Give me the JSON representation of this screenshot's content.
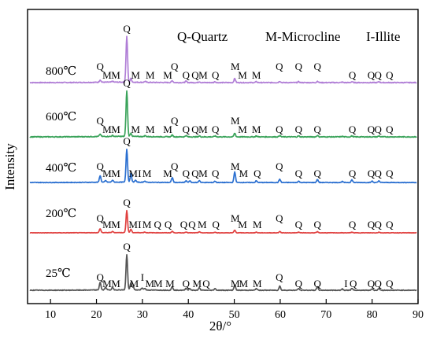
{
  "chart_data": {
    "type": "line",
    "xlabel": "2θ/°",
    "ylabel": "Intensity",
    "xlim": [
      5,
      90
    ],
    "x_ticks": [
      "10",
      "20",
      "30",
      "40",
      "50",
      "60",
      "70",
      "80",
      "90"
    ],
    "legend": [
      {
        "letter": "Q",
        "text": "Q-Quartz"
      },
      {
        "letter": "M",
        "text": "M-Microcline"
      },
      {
        "letter": "I",
        "text": "I-Illite"
      }
    ],
    "series": [
      {
        "name": "800℃",
        "color": "#b07ed6",
        "peaks": [
          [
            20.8,
            0.05
          ],
          [
            23.5,
            0.02
          ],
          [
            26.6,
            1.0
          ],
          [
            27.5,
            0.08
          ],
          [
            30.6,
            0.02
          ],
          [
            36.5,
            0.04
          ],
          [
            39.5,
            0.03
          ],
          [
            42.4,
            0.02
          ],
          [
            45.8,
            0.02
          ],
          [
            50.1,
            0.09
          ],
          [
            54.8,
            0.02
          ],
          [
            59.9,
            0.03
          ],
          [
            64.0,
            0.02
          ],
          [
            68.1,
            0.03
          ],
          [
            73.5,
            0.01
          ],
          [
            75.6,
            0.02
          ],
          [
            81.5,
            0.02
          ]
        ],
        "labels": [
          {
            "t": "Q",
            "x": 20.8,
            "row": 0
          },
          {
            "t": "M",
            "x": 22.3,
            "row": 1
          },
          {
            "t": "M",
            "x": 24.2,
            "row": 1
          },
          {
            "t": "M",
            "x": 28.5,
            "row": 1
          },
          {
            "t": "M",
            "x": 31.7,
            "row": 1
          },
          {
            "t": "M",
            "x": 35.5,
            "row": 1
          },
          {
            "t": "Q",
            "x": 37.0,
            "row": 0
          },
          {
            "t": "Q",
            "x": 39.5,
            "row": 1
          },
          {
            "t": "Q",
            "x": 41.5,
            "row": 1
          },
          {
            "t": "M",
            "x": 43.2,
            "row": 1
          },
          {
            "t": "Q",
            "x": 45.9,
            "row": 1
          },
          {
            "t": "M",
            "x": 50.2,
            "row": 0
          },
          {
            "t": "M",
            "x": 51.8,
            "row": 1
          },
          {
            "t": "M",
            "x": 54.8,
            "row": 1
          },
          {
            "t": "Q",
            "x": 59.8,
            "row": 0
          },
          {
            "t": "Q",
            "x": 64.0,
            "row": 0
          },
          {
            "t": "Q",
            "x": 68.1,
            "row": 0
          },
          {
            "t": "Q",
            "x": 75.7,
            "row": 1
          },
          {
            "t": "Q",
            "x": 79.8,
            "row": 1
          },
          {
            "t": "Q",
            "x": 81.3,
            "row": 1
          },
          {
            "t": "Q",
            "x": 83.8,
            "row": 1
          }
        ]
      },
      {
        "name": "600℃",
        "color": "#3aa35a",
        "peaks": [
          [
            20.8,
            0.05
          ],
          [
            23.5,
            0.02
          ],
          [
            26.6,
            1.0
          ],
          [
            27.5,
            0.07
          ],
          [
            30.6,
            0.02
          ],
          [
            36.5,
            0.04
          ],
          [
            39.5,
            0.03
          ],
          [
            42.4,
            0.02
          ],
          [
            45.8,
            0.02
          ],
          [
            50.1,
            0.08
          ],
          [
            54.8,
            0.02
          ],
          [
            59.9,
            0.03
          ],
          [
            64.0,
            0.02
          ],
          [
            68.1,
            0.03
          ],
          [
            73.5,
            0.01
          ],
          [
            75.6,
            0.02
          ],
          [
            81.5,
            0.02
          ]
        ],
        "labels": [
          {
            "t": "Q",
            "x": 20.8,
            "row": 0
          },
          {
            "t": "M",
            "x": 22.3,
            "row": 1
          },
          {
            "t": "M",
            "x": 24.2,
            "row": 1
          },
          {
            "t": "M",
            "x": 28.5,
            "row": 1
          },
          {
            "t": "M",
            "x": 31.7,
            "row": 1
          },
          {
            "t": "M",
            "x": 35.5,
            "row": 1
          },
          {
            "t": "Q",
            "x": 37.0,
            "row": 0
          },
          {
            "t": "Q",
            "x": 39.5,
            "row": 1
          },
          {
            "t": "Q",
            "x": 41.5,
            "row": 1
          },
          {
            "t": "M",
            "x": 43.2,
            "row": 1
          },
          {
            "t": "Q",
            "x": 45.9,
            "row": 1
          },
          {
            "t": "M",
            "x": 50.2,
            "row": 0
          },
          {
            "t": "M",
            "x": 51.8,
            "row": 1
          },
          {
            "t": "M",
            "x": 54.8,
            "row": 1
          },
          {
            "t": "Q",
            "x": 59.8,
            "row": 1
          },
          {
            "t": "Q",
            "x": 64.0,
            "row": 1
          },
          {
            "t": "Q",
            "x": 68.1,
            "row": 1
          },
          {
            "t": "Q",
            "x": 75.7,
            "row": 1
          },
          {
            "t": "Q",
            "x": 79.8,
            "row": 1
          },
          {
            "t": "Q",
            "x": 81.3,
            "row": 1
          },
          {
            "t": "Q",
            "x": 83.8,
            "row": 1
          }
        ]
      },
      {
        "name": "400℃",
        "color": "#2a6fd0",
        "peaks": [
          [
            20.8,
            0.2
          ],
          [
            22.0,
            0.05
          ],
          [
            23.5,
            0.06
          ],
          [
            26.6,
            1.0
          ],
          [
            27.5,
            0.25
          ],
          [
            28.5,
            0.06
          ],
          [
            30.5,
            0.04
          ],
          [
            36.5,
            0.15
          ],
          [
            39.5,
            0.05
          ],
          [
            40.3,
            0.05
          ],
          [
            42.4,
            0.06
          ],
          [
            45.8,
            0.04
          ],
          [
            50.1,
            0.32
          ],
          [
            54.8,
            0.05
          ],
          [
            59.9,
            0.1
          ],
          [
            64.0,
            0.04
          ],
          [
            68.1,
            0.09
          ],
          [
            73.5,
            0.03
          ],
          [
            75.6,
            0.08
          ],
          [
            80.0,
            0.04
          ],
          [
            81.5,
            0.05
          ]
        ],
        "labels": [
          {
            "t": "Q",
            "x": 20.8,
            "row": 0
          },
          {
            "t": "M",
            "x": 22.3,
            "row": 1
          },
          {
            "t": "M",
            "x": 24.2,
            "row": 1
          },
          {
            "t": "M",
            "x": 28.0,
            "row": 1
          },
          {
            "t": "I",
            "x": 29.4,
            "row": 1
          },
          {
            "t": "M",
            "x": 31.0,
            "row": 1
          },
          {
            "t": "M",
            "x": 35.5,
            "row": 1
          },
          {
            "t": "Q",
            "x": 37.0,
            "row": 0
          },
          {
            "t": "Q",
            "x": 39.5,
            "row": 1
          },
          {
            "t": "Q",
            "x": 41.5,
            "row": 1
          },
          {
            "t": "M",
            "x": 43.2,
            "row": 1
          },
          {
            "t": "Q",
            "x": 45.9,
            "row": 1
          },
          {
            "t": "M",
            "x": 50.2,
            "row": 0
          },
          {
            "t": "M",
            "x": 52.0,
            "row": 1
          },
          {
            "t": "Q",
            "x": 55.0,
            "row": 1
          },
          {
            "t": "Q",
            "x": 59.8,
            "row": 0
          },
          {
            "t": "Q",
            "x": 64.0,
            "row": 1
          },
          {
            "t": "Q",
            "x": 68.1,
            "row": 1
          },
          {
            "t": "Q",
            "x": 75.7,
            "row": 1
          },
          {
            "t": "Q",
            "x": 79.8,
            "row": 1
          },
          {
            "t": "Q",
            "x": 81.3,
            "row": 1
          },
          {
            "t": "Q",
            "x": 83.8,
            "row": 1
          }
        ]
      },
      {
        "name": "200℃",
        "color": "#e0403f",
        "peaks": [
          [
            20.8,
            0.18
          ],
          [
            23.5,
            0.05
          ],
          [
            26.6,
            1.0
          ],
          [
            27.5,
            0.15
          ],
          [
            30.5,
            0.03
          ],
          [
            36.5,
            0.07
          ],
          [
            39.5,
            0.04
          ],
          [
            42.4,
            0.05
          ],
          [
            45.8,
            0.03
          ],
          [
            50.1,
            0.12
          ],
          [
            54.8,
            0.03
          ],
          [
            59.9,
            0.06
          ],
          [
            64.0,
            0.03
          ],
          [
            68.1,
            0.05
          ],
          [
            75.6,
            0.03
          ],
          [
            81.5,
            0.03
          ]
        ],
        "labels": [
          {
            "t": "Q",
            "x": 20.8,
            "row": 0
          },
          {
            "t": "M",
            "x": 22.3,
            "row": 1
          },
          {
            "t": "M",
            "x": 24.2,
            "row": 1
          },
          {
            "t": "M",
            "x": 28.0,
            "row": 1
          },
          {
            "t": "I",
            "x": 29.4,
            "row": 1
          },
          {
            "t": "M",
            "x": 31.0,
            "row": 1
          },
          {
            "t": "Q",
            "x": 33.3,
            "row": 1
          },
          {
            "t": "Q",
            "x": 35.6,
            "row": 1
          },
          {
            "t": "Q",
            "x": 39.0,
            "row": 1
          },
          {
            "t": "Q",
            "x": 40.8,
            "row": 1
          },
          {
            "t": "M",
            "x": 43.0,
            "row": 1
          },
          {
            "t": "Q",
            "x": 46.0,
            "row": 1
          },
          {
            "t": "M",
            "x": 50.2,
            "row": 0
          },
          {
            "t": "M",
            "x": 51.8,
            "row": 1
          },
          {
            "t": "M",
            "x": 55.0,
            "row": 1
          },
          {
            "t": "Q",
            "x": 59.8,
            "row": 0
          },
          {
            "t": "Q",
            "x": 64.0,
            "row": 1
          },
          {
            "t": "Q",
            "x": 68.1,
            "row": 1
          },
          {
            "t": "Q",
            "x": 75.7,
            "row": 1
          },
          {
            "t": "Q",
            "x": 79.8,
            "row": 1
          },
          {
            "t": "Q",
            "x": 81.3,
            "row": 1
          },
          {
            "t": "Q",
            "x": 83.8,
            "row": 1
          }
        ]
      },
      {
        "name": "25℃",
        "color": "#555555",
        "peaks": [
          [
            20.8,
            0.22
          ],
          [
            22.0,
            0.08
          ],
          [
            23.5,
            0.07
          ],
          [
            26.6,
            1.0
          ],
          [
            27.5,
            0.2
          ],
          [
            28.0,
            0.08
          ],
          [
            29.9,
            0.06
          ],
          [
            30.5,
            0.05
          ],
          [
            36.5,
            0.1
          ],
          [
            39.5,
            0.06
          ],
          [
            40.3,
            0.05
          ],
          [
            42.4,
            0.07
          ],
          [
            45.8,
            0.05
          ],
          [
            50.1,
            0.15
          ],
          [
            54.8,
            0.05
          ],
          [
            59.9,
            0.12
          ],
          [
            64.0,
            0.05
          ],
          [
            68.1,
            0.1
          ],
          [
            73.5,
            0.04
          ],
          [
            75.6,
            0.05
          ],
          [
            80.0,
            0.04
          ],
          [
            81.5,
            0.05
          ]
        ],
        "labels": [
          {
            "t": "Q",
            "x": 20.8,
            "row": 0
          },
          {
            "t": "M",
            "x": 22.3,
            "row": 1
          },
          {
            "t": "M",
            "x": 24.2,
            "row": 1
          },
          {
            "t": "M",
            "x": 28.2,
            "row": 1
          },
          {
            "t": "I",
            "x": 30.0,
            "row": 0
          },
          {
            "t": "M",
            "x": 31.6,
            "row": 1
          },
          {
            "t": "M",
            "x": 33.4,
            "row": 1
          },
          {
            "t": "M",
            "x": 36.0,
            "row": 1
          },
          {
            "t": "Q",
            "x": 39.5,
            "row": 1
          },
          {
            "t": "M",
            "x": 41.9,
            "row": 1
          },
          {
            "t": "Q",
            "x": 43.9,
            "row": 1
          },
          {
            "t": "M",
            "x": 50.2,
            "row": 1
          },
          {
            "t": "M",
            "x": 52.0,
            "row": 1
          },
          {
            "t": "M",
            "x": 55.0,
            "row": 1
          },
          {
            "t": "Q",
            "x": 59.8,
            "row": 0
          },
          {
            "t": "Q",
            "x": 64.0,
            "row": 1
          },
          {
            "t": "Q",
            "x": 68.1,
            "row": 1
          },
          {
            "t": "I",
            "x": 74.3,
            "row": 1
          },
          {
            "t": "Q",
            "x": 75.9,
            "row": 1
          },
          {
            "t": "Q",
            "x": 79.8,
            "row": 1
          },
          {
            "t": "Q",
            "x": 81.3,
            "row": 1
          },
          {
            "t": "Q",
            "x": 83.8,
            "row": 1
          }
        ]
      }
    ]
  }
}
